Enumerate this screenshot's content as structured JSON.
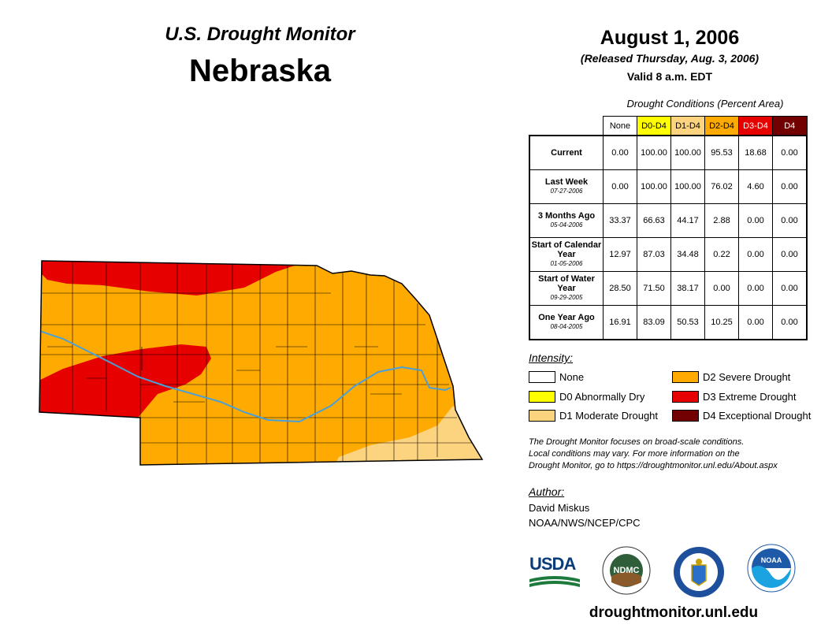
{
  "header": {
    "subtitle": "U.S. Drought Monitor",
    "state": "Nebraska",
    "date": "August 1, 2006",
    "released": "(Released Thursday, Aug. 3, 2006)",
    "valid": "Valid 8 a.m. EDT"
  },
  "table": {
    "caption": "Drought Conditions (Percent Area)",
    "columns": [
      {
        "label": "None",
        "bg": "#ffffff",
        "fg": "#000000"
      },
      {
        "label": "D0-D4",
        "bg": "#ffff00",
        "fg": "#000000"
      },
      {
        "label": "D1-D4",
        "bg": "#fcd37f",
        "fg": "#000000"
      },
      {
        "label": "D2-D4",
        "bg": "#ffaa00",
        "fg": "#000000"
      },
      {
        "label": "D3-D4",
        "bg": "#e60000",
        "fg": "#ffffff"
      },
      {
        "label": "D4",
        "bg": "#730000",
        "fg": "#ffffff"
      }
    ],
    "rows": [
      {
        "label": "Current",
        "date": "",
        "values": [
          "0.00",
          "100.00",
          "100.00",
          "95.53",
          "18.68",
          "0.00"
        ]
      },
      {
        "label": "Last Week",
        "date": "07-27-2006",
        "values": [
          "0.00",
          "100.00",
          "100.00",
          "76.02",
          "4.60",
          "0.00"
        ]
      },
      {
        "label": "3 Months Ago",
        "date": "05-04-2006",
        "values": [
          "33.37",
          "66.63",
          "44.17",
          "2.88",
          "0.00",
          "0.00"
        ]
      },
      {
        "label": "Start of Calendar Year",
        "date": "01-05-2006",
        "values": [
          "12.97",
          "87.03",
          "34.48",
          "0.22",
          "0.00",
          "0.00"
        ]
      },
      {
        "label": "Start of Water Year",
        "date": "09-29-2005",
        "values": [
          "28.50",
          "71.50",
          "38.17",
          "0.00",
          "0.00",
          "0.00"
        ]
      },
      {
        "label": "One Year Ago",
        "date": "08-04-2005",
        "values": [
          "16.91",
          "83.09",
          "50.53",
          "10.25",
          "0.00",
          "0.00"
        ]
      }
    ]
  },
  "legend": {
    "title": "Intensity:",
    "items": [
      {
        "label": "None",
        "color": "#ffffff"
      },
      {
        "label": "D0 Abnormally Dry",
        "color": "#ffff00"
      },
      {
        "label": "D1 Moderate Drought",
        "color": "#fcd37f"
      },
      {
        "label": "D2 Severe Drought",
        "color": "#ffaa00"
      },
      {
        "label": "D3 Extreme Drought",
        "color": "#e60000"
      },
      {
        "label": "D4 Exceptional Drought",
        "color": "#730000"
      }
    ]
  },
  "note": {
    "line1": "The Drought Monitor focuses on broad-scale conditions.",
    "line2": "Local conditions may vary. For more information on the",
    "line3": "Drought Monitor, go to https://droughtmonitor.unl.edu/About.aspx"
  },
  "author": {
    "title": "Author:",
    "name": "David Miskus",
    "org": "NOAA/NWS/NCEP/CPC"
  },
  "logos": {
    "usda": "USDA",
    "ndmc": "NDMC",
    "noaa": "NOAA"
  },
  "footer": {
    "url": "droughtmonitor.unl.edu"
  },
  "map_colors": {
    "d1": "#fcd37f",
    "d2": "#ffaa00",
    "d3": "#e60000",
    "river": "#4a9fd8",
    "border": "#000000"
  }
}
